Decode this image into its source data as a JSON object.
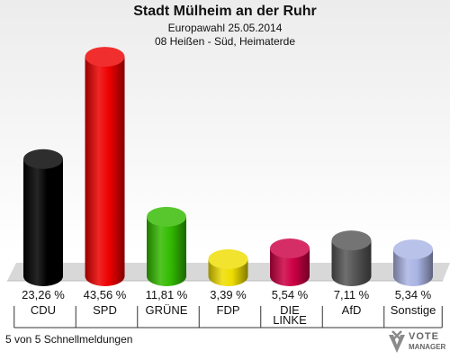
{
  "header": {
    "title": "Stadt Mülheim an der Ruhr",
    "subtitle": "Europawahl 25.05.2014",
    "district": "08 Heißen - Süd, Heimaterde"
  },
  "footer": {
    "status": "5 von 5 Schnellmeldungen"
  },
  "logo": {
    "line1": "VOTE",
    "line2": "MANAGER"
  },
  "colors": [
    "#000000",
    "#ee0000",
    "#33bb00",
    "#eedd00",
    "#cc0044",
    "#555555",
    "#aab4e4"
  ],
  "chart_data": {
    "type": "bar",
    "style": "3d-cylinder",
    "categories": [
      "CDU",
      "SPD",
      "GRÜNE",
      "FDP",
      "DIE LINKE",
      "AfD",
      "Sonstige"
    ],
    "values": [
      23.26,
      43.56,
      11.81,
      3.39,
      5.54,
      7.11,
      5.34
    ],
    "labels": [
      "23,26 %",
      "43,56 %",
      "11,81 %",
      "3,39 %",
      "5,54 %",
      "7,11 %",
      "5,34 %"
    ],
    "ylim": [
      0,
      45
    ],
    "grid": false,
    "legend": "none"
  }
}
